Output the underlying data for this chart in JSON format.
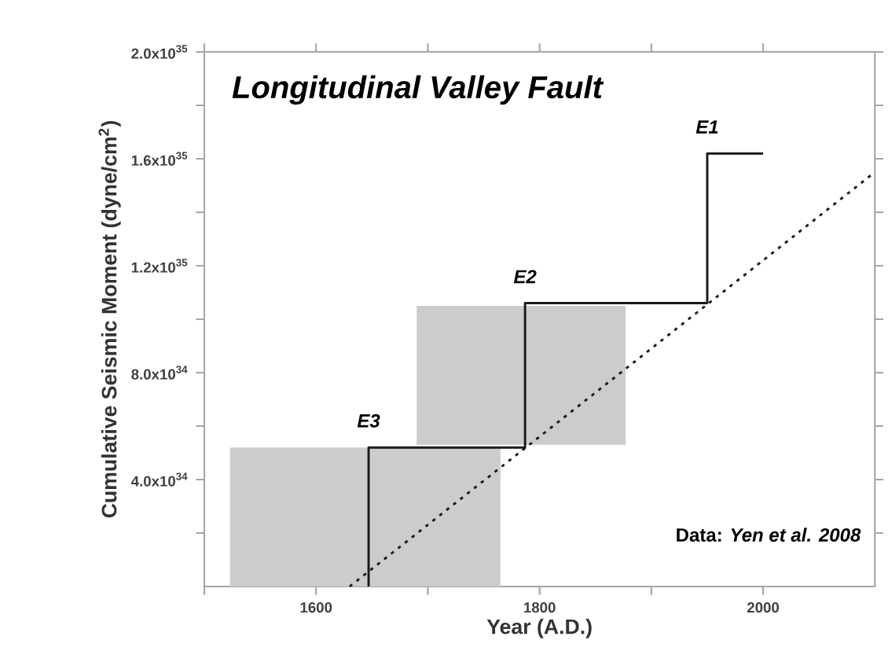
{
  "chart_data": {
    "type": "line",
    "title": "Longitudinal Valley Fault",
    "xlabel": "Year (A.D.)",
    "ylabel": "Cumulative Seismic Moment (dyne/cm$^{2}$)",
    "xlim": [
      1500,
      2100
    ],
    "ylim": [
      0,
      2e+35
    ],
    "xticks": [
      {
        "value": 1500,
        "label": null
      },
      {
        "value": 1600,
        "label": "1600"
      },
      {
        "value": 1700,
        "label": null
      },
      {
        "value": 1800,
        "label": "1800"
      },
      {
        "value": 1900,
        "label": null
      },
      {
        "value": 2000,
        "label": "2000"
      }
    ],
    "yticks": [
      {
        "value": 2e+34,
        "label": null
      },
      {
        "value": 4e+34,
        "label": "4.0x10$^{34}$"
      },
      {
        "value": 6e+34,
        "label": null
      },
      {
        "value": 8e+34,
        "label": "8.0x10$^{34}$"
      },
      {
        "value": 1e+35,
        "label": null
      },
      {
        "value": 1.2e+35,
        "label": "1.2x10$^{35}$"
      },
      {
        "value": 1.4e+35,
        "label": null
      },
      {
        "value": 1.6e+35,
        "label": "1.6x10$^{35}$"
      },
      {
        "value": 1.8e+35,
        "label": null
      },
      {
        "value": 2e+35,
        "label": "2.0x10$^{35}$"
      }
    ],
    "series": [
      {
        "type": "area",
        "color": "#cccccc",
        "x": [
          1523,
          1765
        ],
        "values": [
          5.2e+34,
          5.2e+34
        ]
      },
      {
        "type": "line",
        "color": "#cccccc",
        "x": [
          1690,
          1877
        ],
        "values": [
          null,
          null
        ],
        "lower": [
          5.3e+34,
          5.3e+34
        ],
        "upper": [
          1.05e+35,
          1.05e+35
        ]
      },
      {
        "color": "#1a1a1a",
        "line_style": "dotted",
        "x": [
          1630,
          2100
        ],
        "values": [
          0,
          1.55e+35
        ]
      },
      {
        "color": "#1a1a1a",
        "line_style": "solid",
        "x": [
          1647,
          1647,
          1787,
          1787,
          1950,
          1950,
          2000
        ],
        "values": [
          0,
          5.2e+34,
          5.2e+34,
          1.06e+35,
          1.06e+35,
          1.62e+35,
          1.62e+35
        ]
      }
    ],
    "annotations": [
      {
        "text": "E3",
        "x": 1647,
        "y": 5.2e+34
      },
      {
        "text": "E2",
        "x": 1787,
        "y": 1.06e+35
      },
      {
        "text": "E1",
        "x": 1950,
        "y": 1.62e+35
      },
      "Data: *Yen et al.  2008*"
    ]
  }
}
